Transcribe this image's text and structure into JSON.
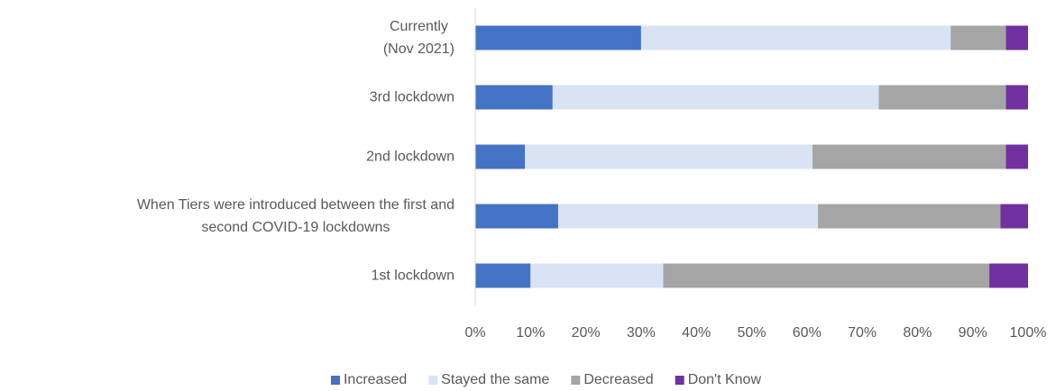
{
  "chart_data": {
    "type": "stacked_bar_horizontal",
    "categories": [
      "Currently\n(Nov 2021)",
      "3rd lockdown",
      "2nd lockdown",
      "When Tiers were introduced between the first and\nsecond COVID-19 lockdowns",
      "1st lockdown"
    ],
    "series": [
      {
        "name": "Increased",
        "color": "#4472c4",
        "values": [
          30,
          14,
          9,
          15,
          10
        ]
      },
      {
        "name": "Stayed the same",
        "color": "#dae3f3",
        "values": [
          56,
          59,
          52,
          47,
          24
        ]
      },
      {
        "name": "Decreased",
        "color": "#a5a5a5",
        "values": [
          10,
          23,
          35,
          33,
          59
        ]
      },
      {
        "name": "Don't Know",
        "color": "#7030a0",
        "values": [
          4,
          4,
          4,
          5,
          7
        ]
      }
    ],
    "xlim": [
      0,
      100
    ],
    "xticks": [
      {
        "value": 0,
        "label": "0%"
      },
      {
        "value": 10,
        "label": "10%"
      },
      {
        "value": 20,
        "label": "20%"
      },
      {
        "value": 30,
        "label": "30%"
      },
      {
        "value": 40,
        "label": "40%"
      },
      {
        "value": 50,
        "label": "50%"
      },
      {
        "value": 60,
        "label": "60%"
      },
      {
        "value": 70,
        "label": "70%"
      },
      {
        "value": 80,
        "label": "80%"
      },
      {
        "value": 90,
        "label": "90%"
      },
      {
        "value": 100,
        "label": "100%"
      }
    ],
    "legend": "bottom"
  }
}
